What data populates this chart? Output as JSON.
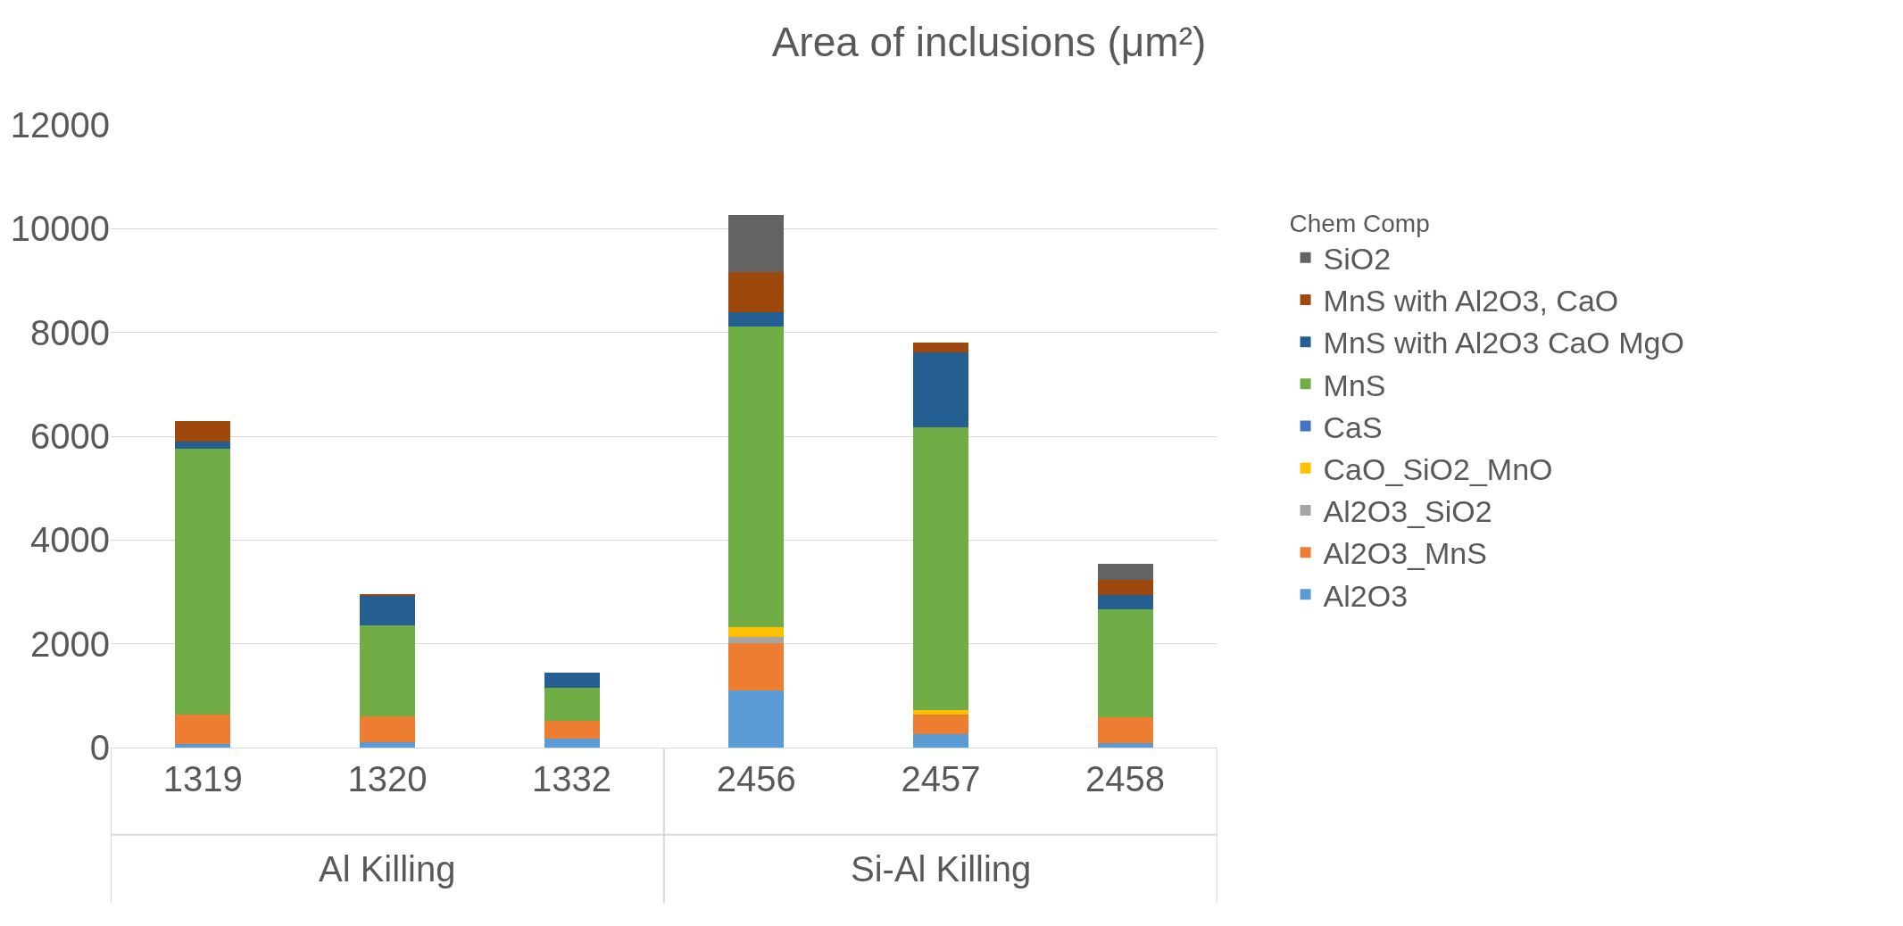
{
  "chart_data": {
    "type": "bar",
    "stacked": true,
    "title": "Area of inclusions (μm²)",
    "legend_title": "Chem Comp",
    "categories": [
      "1319",
      "1320",
      "1332",
      "2456",
      "2457",
      "2458"
    ],
    "annotations": [
      "Al Killing",
      "Si-Al Killing"
    ],
    "series": [
      {
        "name": "Al2O3",
        "color": "#5b9bd5",
        "values": [
          70,
          100,
          170,
          1100,
          260,
          90
        ]
      },
      {
        "name": "Al2O3_MnS",
        "color": "#ed7d31",
        "values": [
          570,
          510,
          340,
          910,
          370,
          490
        ]
      },
      {
        "name": "Al2O3_SiO2",
        "color": "#a5a5a5",
        "values": [
          0,
          0,
          0,
          130,
          0,
          null
        ]
      },
      {
        "name": "CaO_SiO2_MnO",
        "color": "#ffc000",
        "values": [
          0,
          0,
          0,
          180,
          100,
          0
        ]
      },
      {
        "name": "CaS",
        "color": "#4472c4",
        "values": [
          0,
          0,
          0,
          0,
          0,
          0
        ]
      },
      {
        "name": "MnS",
        "color": "#70ad47",
        "values": [
          5120,
          1740,
          640,
          5800,
          5440,
          2080
        ]
      },
      {
        "name": "MnS with Al2O3 CaO MgO",
        "color": "#255e91",
        "values": [
          140,
          580,
          290,
          270,
          1440,
          280
        ]
      },
      {
        "name": "MnS with Al2O3, CaO",
        "color": "#9e480e",
        "values": [
          390,
          30,
          0,
          770,
          190,
          300
        ]
      },
      {
        "name": "SiO2",
        "color": "#636363",
        "values": [
          0,
          0,
          0,
          1100,
          0,
          300
        ]
      }
    ],
    "ylim": [
      0,
      12000
    ],
    "yticks": [
      0,
      2000,
      4000,
      6000,
      8000,
      10000,
      12000
    ],
    "grid": "y",
    "legend": "right"
  }
}
